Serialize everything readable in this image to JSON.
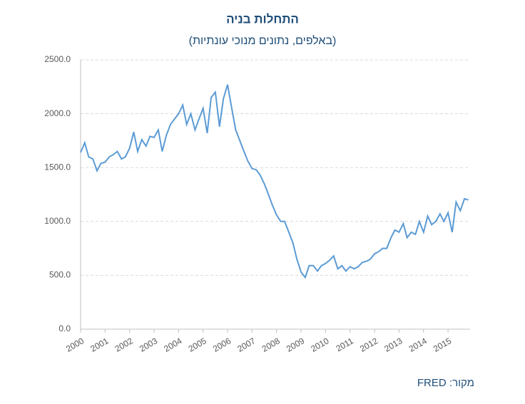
{
  "chart_data": {
    "type": "line",
    "title": "התחלות בניה",
    "subtitle": "(באלפים, נתונים מנוכי עונתיות)",
    "source": "מקור: FRED",
    "color": "#5b9bd5",
    "grid": true,
    "xlim": [
      2000,
      2015.9
    ],
    "xticks": [
      2000,
      2001,
      2002,
      2003,
      2004,
      2005,
      2006,
      2007,
      2008,
      2009,
      2010,
      2011,
      2012,
      2013,
      2014,
      2015
    ],
    "ylim": [
      0,
      2500
    ],
    "yticks": [
      {
        "value": 0,
        "label": "0.0"
      },
      {
        "value": 500,
        "label": "500.0"
      },
      {
        "value": 1000,
        "label": "1000.0"
      },
      {
        "value": 1500,
        "label": "1500.0"
      },
      {
        "value": 2000,
        "label": "2000.0"
      },
      {
        "value": 2500,
        "label": "2500.0"
      }
    ],
    "x": [
      2000,
      2000.17,
      2000.33,
      2000.5,
      2000.67,
      2000.83,
      2001,
      2001.17,
      2001.33,
      2001.5,
      2001.67,
      2001.83,
      2002,
      2002.17,
      2002.33,
      2002.5,
      2002.67,
      2002.83,
      2003,
      2003.17,
      2003.33,
      2003.5,
      2003.67,
      2003.83,
      2004,
      2004.17,
      2004.33,
      2004.5,
      2004.67,
      2004.83,
      2005,
      2005.17,
      2005.33,
      2005.5,
      2005.67,
      2005.83,
      2006,
      2006.17,
      2006.33,
      2006.5,
      2006.67,
      2006.83,
      2007,
      2007.17,
      2007.33,
      2007.5,
      2007.67,
      2007.83,
      2008,
      2008.17,
      2008.33,
      2008.5,
      2008.67,
      2008.83,
      2009,
      2009.17,
      2009.33,
      2009.5,
      2009.67,
      2009.83,
      2010,
      2010.17,
      2010.33,
      2010.5,
      2010.67,
      2010.83,
      2011,
      2011.17,
      2011.33,
      2011.5,
      2011.67,
      2011.83,
      2012,
      2012.17,
      2012.33,
      2012.5,
      2012.67,
      2012.83,
      2013,
      2013.17,
      2013.33,
      2013.5,
      2013.67,
      2013.83,
      2014,
      2014.17,
      2014.33,
      2014.5,
      2014.67,
      2014.83,
      2015,
      2015.17,
      2015.33,
      2015.5,
      2015.67,
      2015.83
    ],
    "series": [
      {
        "name": "התחלות בניה",
        "values": [
          1640,
          1730,
          1600,
          1580,
          1470,
          1540,
          1550,
          1600,
          1620,
          1650,
          1580,
          1600,
          1680,
          1830,
          1650,
          1760,
          1700,
          1790,
          1780,
          1850,
          1650,
          1800,
          1900,
          1950,
          2000,
          2080,
          1900,
          2000,
          1850,
          1950,
          2050,
          1820,
          2150,
          2200,
          1880,
          2140,
          2270,
          2050,
          1850,
          1750,
          1650,
          1560,
          1490,
          1480,
          1430,
          1350,
          1250,
          1150,
          1060,
          1000,
          1000,
          900,
          800,
          650,
          530,
          480,
          590,
          590,
          540,
          590,
          610,
          640,
          680,
          560,
          590,
          540,
          580,
          560,
          580,
          620,
          630,
          650,
          700,
          720,
          750,
          750,
          850,
          920,
          900,
          980,
          850,
          900,
          880,
          1000,
          900,
          1050,
          970,
          1000,
          1070,
          1000,
          1080,
          900,
          1180,
          1100,
          1210,
          1200
        ]
      }
    ]
  }
}
